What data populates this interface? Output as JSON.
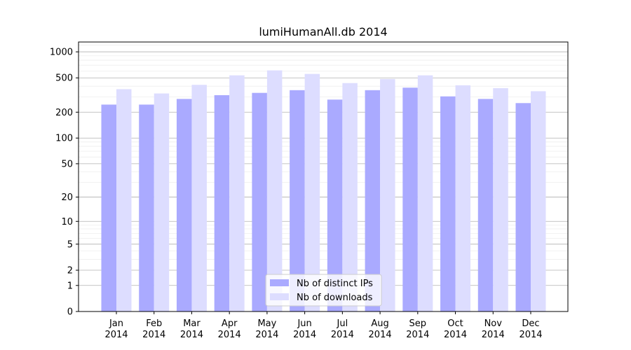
{
  "chart_data": {
    "type": "bar",
    "title": "lumiHumanAll.db 2014",
    "xlabel": "",
    "ylabel": "",
    "categories": [
      "Jan\n2014",
      "Feb\n2014",
      "Mar\n2014",
      "Apr\n2014",
      "May\n2014",
      "Jun\n2014",
      "Jul\n2014",
      "Aug\n2014",
      "Sep\n2014",
      "Oct\n2014",
      "Nov\n2014",
      "Dec\n2014"
    ],
    "series": [
      {
        "name": "Nb of distinct IPs",
        "color": "#aaaaff",
        "values": [
          245,
          245,
          285,
          315,
          335,
          360,
          280,
          360,
          385,
          305,
          285,
          255
        ]
      },
      {
        "name": "Nb of downloads",
        "color": "#ddddff",
        "values": [
          370,
          330,
          415,
          535,
          610,
          555,
          435,
          485,
          535,
          410,
          380,
          350
        ]
      }
    ],
    "yscale": "log(1+y)",
    "ylim": [
      0,
      1300
    ],
    "yticks": [
      0,
      1,
      2,
      5,
      10,
      20,
      50,
      100,
      200,
      500,
      1000
    ],
    "grid": true,
    "legend_position": "bottom-center"
  }
}
